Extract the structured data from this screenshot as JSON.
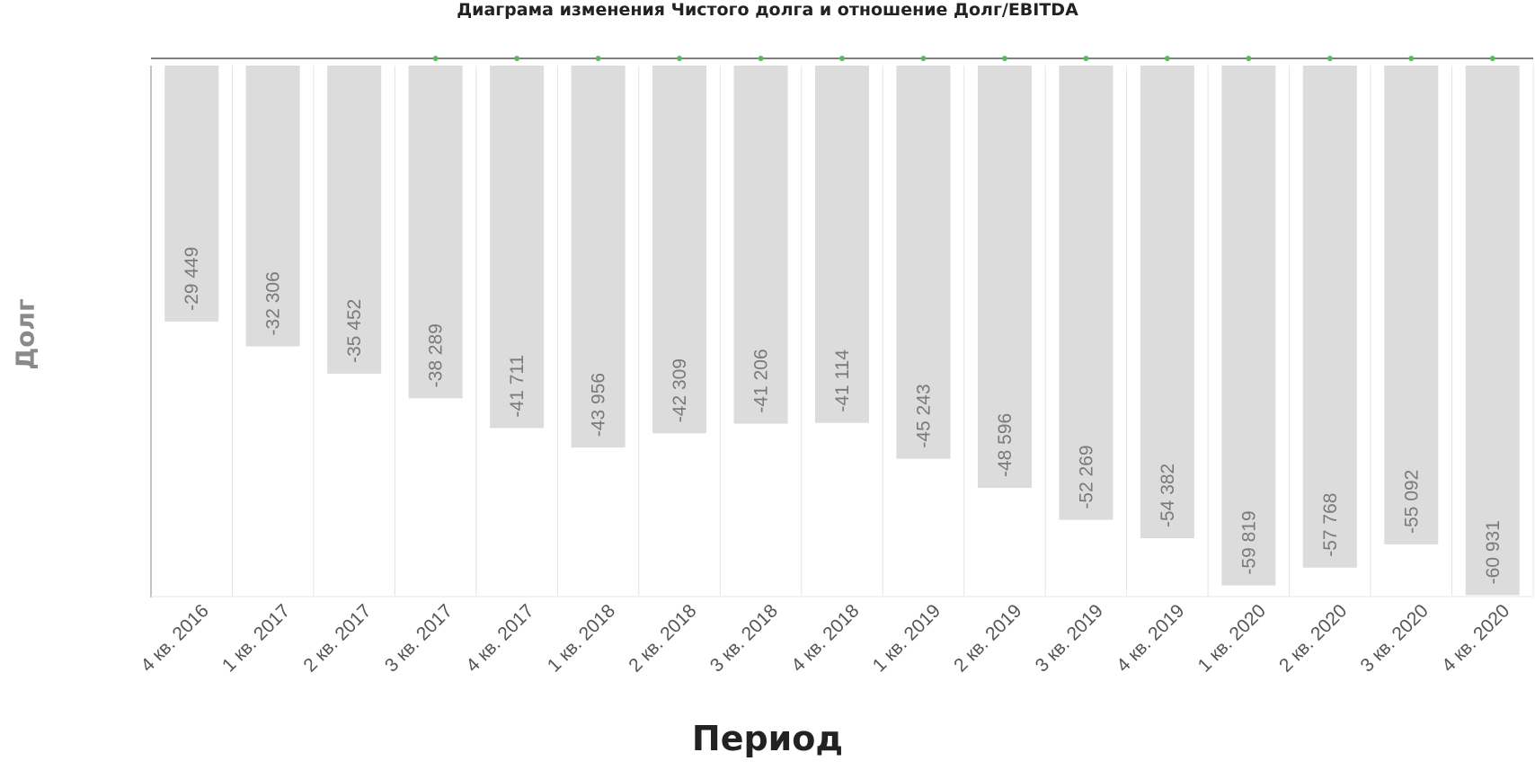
{
  "chart_data": {
    "type": "bar",
    "title": "Диаграма изменения Чистого долга и отношение Долг/EBITDA",
    "xlabel": "Период",
    "ylabel": "Долг",
    "categories": [
      "4 кв. 2016",
      "1 кв. 2017",
      "2 кв. 2017",
      "3 кв. 2017",
      "4 кв. 2017",
      "1 кв. 2018",
      "2 кв. 2018",
      "3 кв. 2018",
      "4 кв. 2018",
      "1 кв. 2019",
      "2 кв. 2019",
      "3 кв. 2019",
      "4 кв. 2019",
      "1 кв. 2020",
      "2 кв. 2020",
      "3 кв. 2020",
      "4 кв. 2020"
    ],
    "values": [
      -29449,
      -32306,
      -35452,
      -38289,
      -41711,
      -43956,
      -42309,
      -41206,
      -41114,
      -45243,
      -48596,
      -52269,
      -54382,
      -59819,
      -57768,
      -55092,
      -60931
    ],
    "data_labels": [
      "-29 449",
      "-32 306",
      "-35 452",
      "-38 289",
      "-41 711",
      "-43 956",
      "-42 309",
      "-41 206",
      "-41 114",
      "-45 243",
      "-48 596",
      "-52 269",
      "-54 382",
      "-59 819",
      "-57 768",
      "-55 092",
      "-60 931"
    ],
    "ylim": [
      -61000,
      0
    ],
    "grid": true,
    "colors": {
      "bar": "#dcdcdc",
      "grid": "#e4e4e4",
      "axis": "#888888",
      "line": "#555555",
      "marker": "#5cb85c"
    }
  }
}
